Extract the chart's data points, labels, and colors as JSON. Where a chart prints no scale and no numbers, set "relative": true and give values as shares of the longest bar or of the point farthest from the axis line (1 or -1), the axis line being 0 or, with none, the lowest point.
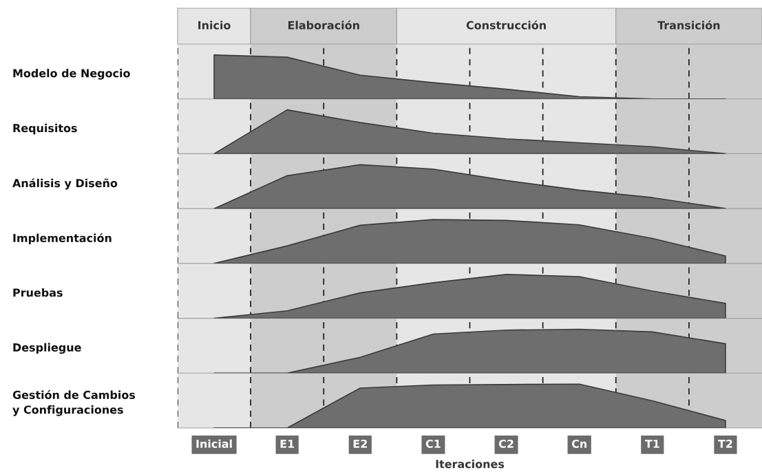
{
  "chart_data": [
    {
      "type": "area",
      "relative": true,
      "ylabel": "Modelo de Negocio",
      "grid": "x",
      "categories": [
        null,
        null,
        null,
        null,
        null,
        null,
        null,
        null
      ],
      "series": [
        {
          "color": "#6e6e6e",
          "values": [
            1,
            0.95,
            0.54,
            0.37,
            0.22,
            0.05,
            0,
            0
          ]
        }
      ]
    },
    {
      "type": "area",
      "relative": true,
      "ylabel": "Requisitos",
      "grid": "x",
      "categories": [
        null,
        null,
        null,
        null,
        null,
        null,
        null,
        null
      ],
      "series": [
        {
          "color": "#6e6e6e",
          "values": [
            0,
            1,
            0.71,
            0.47,
            0.34,
            0.25,
            0.16,
            0
          ]
        }
      ]
    },
    {
      "type": "area",
      "relative": true,
      "ylabel": "Análisis y Diseño",
      "grid": "x",
      "categories": [
        null,
        null,
        null,
        null,
        null,
        null,
        null,
        null
      ],
      "series": [
        {
          "color": "#6e6e6e",
          "values": [
            0,
            0.75,
            1,
            0.9,
            0.64,
            0.42,
            0.25,
            0
          ]
        }
      ]
    },
    {
      "type": "area",
      "relative": true,
      "ylabel": "Implementación",
      "grid": "x",
      "categories": [
        null,
        null,
        null,
        null,
        null,
        null,
        null,
        null
      ],
      "series": [
        {
          "color": "#6e6e6e",
          "values": [
            0,
            0.4,
            0.87,
            1,
            0.98,
            0.88,
            0.57,
            0.17
          ]
        }
      ]
    },
    {
      "type": "area",
      "relative": true,
      "ylabel": "Pruebas",
      "grid": "x",
      "categories": [
        null,
        null,
        null,
        null,
        null,
        null,
        null,
        null
      ],
      "series": [
        {
          "color": "#6e6e6e",
          "values": [
            0,
            0.17,
            0.58,
            0.81,
            1,
            0.95,
            0.62,
            0.34
          ]
        }
      ]
    },
    {
      "type": "area",
      "relative": true,
      "ylabel": "Despliegue",
      "grid": "x",
      "categories": [
        null,
        null,
        null,
        null,
        null,
        null,
        null,
        null
      ],
      "series": [
        {
          "color": "#6e6e6e",
          "values": [
            0,
            0,
            0.36,
            0.89,
            0.98,
            1,
            0.94,
            0.67
          ]
        }
      ]
    },
    {
      "type": "area",
      "relative": true,
      "ylabel": "Gestión de Cambios\ny Configuraciones",
      "xlabel": "Iteraciones",
      "grid": "x",
      "categories": [
        "Inicial",
        "E1",
        "E2",
        "C1",
        "C2",
        "Cn",
        "T1",
        "T2"
      ],
      "series": [
        {
          "color": "#6e6e6e",
          "values": [
            0,
            0,
            0.91,
            0.98,
            0.99,
            1,
            0.62,
            0.17
          ]
        }
      ],
      "bands": [
        {
          "axis": "x",
          "from": "Inicial",
          "to": "Inicial",
          "label": "Inicio",
          "color": "#e6e6e6"
        },
        {
          "axis": "x",
          "from": "E1",
          "to": "E2",
          "label": "Elaboración",
          "color": "#cdcdcd"
        },
        {
          "axis": "x",
          "from": "C1",
          "to": "Cn",
          "label": "Construcción",
          "color": "#e6e6e6"
        },
        {
          "axis": "x",
          "from": "T1",
          "to": "T2",
          "label": "Transición",
          "color": "#cdcdcd"
        }
      ]
    }
  ]
}
